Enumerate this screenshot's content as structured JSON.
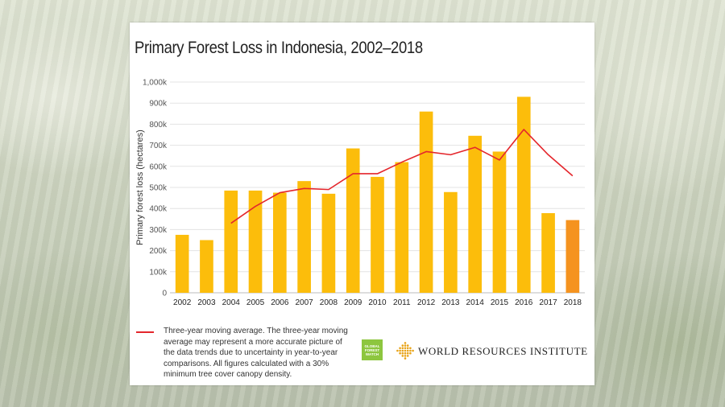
{
  "chart_data": {
    "type": "bar",
    "title": "Primary Forest Loss in Indonesia, 2002–2018",
    "ylabel": "Primary forest loss (hectares)",
    "xlabel": "",
    "ylim": [
      0,
      1000000
    ],
    "yticks": [
      "0",
      "100k",
      "200k",
      "300k",
      "400k",
      "500k",
      "600k",
      "700k",
      "800k",
      "900k",
      "1,000k"
    ],
    "grid": true,
    "categories": [
      "2002",
      "2003",
      "2004",
      "2005",
      "2006",
      "2007",
      "2008",
      "2009",
      "2010",
      "2011",
      "2012",
      "2013",
      "2014",
      "2015",
      "2016",
      "2017",
      "2018"
    ],
    "values": [
      275000,
      250000,
      485000,
      485000,
      475000,
      530000,
      470000,
      685000,
      550000,
      620000,
      860000,
      478000,
      745000,
      670000,
      930000,
      378000,
      345000
    ],
    "bar_color": "#fcbd0b",
    "highlight_color": "#f5931f",
    "highlight_index": 16,
    "moving_average": {
      "start_index": 2,
      "values": [
        330000,
        410000,
        475000,
        495000,
        490000,
        565000,
        565000,
        620000,
        670000,
        655000,
        690000,
        630000,
        775000,
        655000,
        555000
      ],
      "color": "#e4262c"
    }
  },
  "legend": {
    "text": "Three-year moving average. The three-year moving average may represent a more accurate picture of the data trends due to uncertainty in year-to-year comparisons. All figures calculated with a 30% minimum tree cover canopy density."
  },
  "logos": {
    "gfw": "GLOBAL FOREST WATCH",
    "wri": "WORLD RESOURCES INSTITUTE",
    "gfw_color": "#8dc63f",
    "wri_color": "#e8a317"
  }
}
